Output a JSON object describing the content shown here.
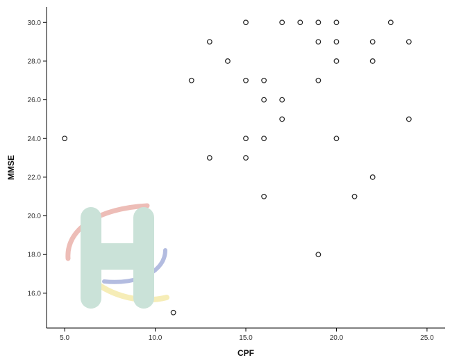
{
  "chart_data": {
    "type": "scatter",
    "title": "",
    "xlabel": "CPF",
    "ylabel": "MMSE",
    "xlim": [
      4,
      26
    ],
    "ylim": [
      14.2,
      30.8
    ],
    "grid": false,
    "x_ticks": [
      "5.0",
      "10.0",
      "15.0",
      "20.0",
      "25.0"
    ],
    "y_ticks": [
      "16.0",
      "18.0",
      "20.0",
      "22.0",
      "24.0",
      "26.0",
      "28.0",
      "30.0"
    ],
    "series": [
      {
        "points": [
          {
            "x": 5,
            "y": 24
          },
          {
            "x": 11,
            "y": 15
          },
          {
            "x": 12,
            "y": 27
          },
          {
            "x": 13,
            "y": 29
          },
          {
            "x": 13,
            "y": 23
          },
          {
            "x": 14,
            "y": 28
          },
          {
            "x": 15,
            "y": 30
          },
          {
            "x": 15,
            "y": 27
          },
          {
            "x": 15,
            "y": 24
          },
          {
            "x": 15,
            "y": 23
          },
          {
            "x": 16,
            "y": 27
          },
          {
            "x": 16,
            "y": 26
          },
          {
            "x": 16,
            "y": 24
          },
          {
            "x": 16,
            "y": 21
          },
          {
            "x": 17,
            "y": 30
          },
          {
            "x": 17,
            "y": 26
          },
          {
            "x": 17,
            "y": 25
          },
          {
            "x": 18,
            "y": 30
          },
          {
            "x": 19,
            "y": 30
          },
          {
            "x": 19,
            "y": 29
          },
          {
            "x": 19,
            "y": 27
          },
          {
            "x": 19,
            "y": 18
          },
          {
            "x": 20,
            "y": 30
          },
          {
            "x": 20,
            "y": 29
          },
          {
            "x": 20,
            "y": 28
          },
          {
            "x": 20,
            "y": 24
          },
          {
            "x": 21,
            "y": 21
          },
          {
            "x": 22,
            "y": 29
          },
          {
            "x": 22,
            "y": 28
          },
          {
            "x": 22,
            "y": 22
          },
          {
            "x": 23,
            "y": 30
          },
          {
            "x": 24,
            "y": 29
          },
          {
            "x": 24,
            "y": 25
          }
        ]
      }
    ]
  },
  "colors": {
    "marker": "#222222",
    "axis": "#000000",
    "watermark_teal": "#b9d9cc",
    "watermark_red": "#e8a7a0",
    "watermark_yellow": "#f3e8a0",
    "watermark_blue": "#9aa6d6"
  },
  "watermark": {
    "icon": "hospital-h-logo-watermark"
  }
}
